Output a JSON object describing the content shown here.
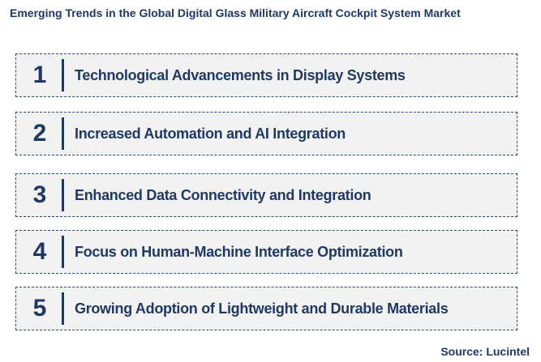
{
  "header": {
    "title": "Emerging Trends in the Global Digital Glass Military Aircraft Cockpit System Market"
  },
  "items": [
    {
      "number": "1",
      "label": "Technological Advancements in Display Systems"
    },
    {
      "number": "2",
      "label": "Increased Automation and AI Integration"
    },
    {
      "number": "3",
      "label": "Enhanced Data Connectivity and Integration"
    },
    {
      "number": "4",
      "label": "Focus on Human-Machine Interface Optimization"
    },
    {
      "number": "5",
      "label": "Growing Adoption of Lightweight and Durable Materials"
    }
  ],
  "footer": {
    "source": "Source: Lucintel"
  }
}
